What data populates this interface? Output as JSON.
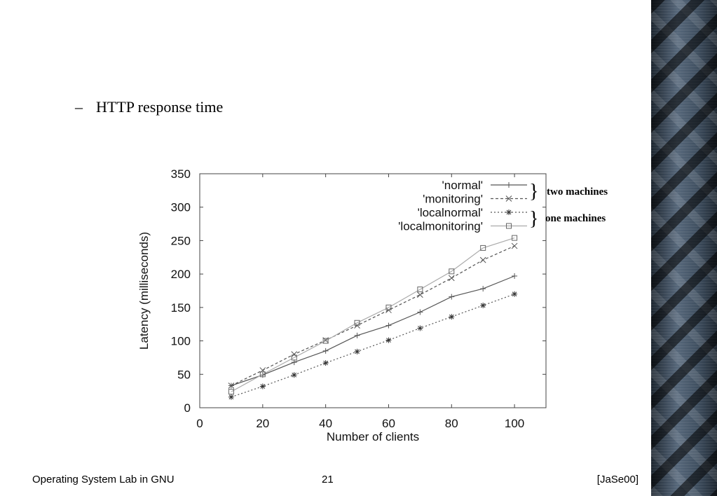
{
  "slide": {
    "bullet_marker": "–",
    "bullet_text": "HTTP response time",
    "footer_left": "Operating System Lab in GNU",
    "footer_center": "21",
    "footer_right": "[JaSe00]"
  },
  "chart_data": {
    "type": "line",
    "title": "",
    "xlabel": "Number of clients",
    "ylabel": "Latency (milliseconds)",
    "xlim": [
      0,
      110
    ],
    "ylim": [
      0,
      350
    ],
    "xticks": [
      0,
      20,
      40,
      60,
      80,
      100
    ],
    "yticks": [
      0,
      50,
      100,
      150,
      200,
      250,
      300,
      350
    ],
    "x": [
      10,
      20,
      30,
      40,
      50,
      60,
      70,
      80,
      90,
      100
    ],
    "legend_position": "top-right",
    "grid": false,
    "series": [
      {
        "name": "'normal'",
        "marker": "+",
        "style": "solid",
        "color": "#555555",
        "values": [
          33,
          49,
          68,
          85,
          108,
          123,
          143,
          166,
          178,
          197
        ]
      },
      {
        "name": "'monitoring'",
        "marker": "x",
        "style": "dashed",
        "color": "#555555",
        "values": [
          33,
          56,
          80,
          101,
          123,
          146,
          169,
          194,
          221,
          242
        ]
      },
      {
        "name": "'localnormal'",
        "marker": "*",
        "style": "dotted",
        "color": "#555555",
        "values": [
          16,
          32,
          49,
          67,
          84,
          101,
          119,
          136,
          153,
          170
        ]
      },
      {
        "name": "'localmonitoring'",
        "marker": "square",
        "style": "solid-light",
        "color": "#aaaaaa",
        "values": [
          24,
          50,
          75,
          100,
          127,
          150,
          177,
          204,
          239,
          254
        ]
      }
    ],
    "annotations": [
      "two machines",
      "one machines"
    ]
  }
}
